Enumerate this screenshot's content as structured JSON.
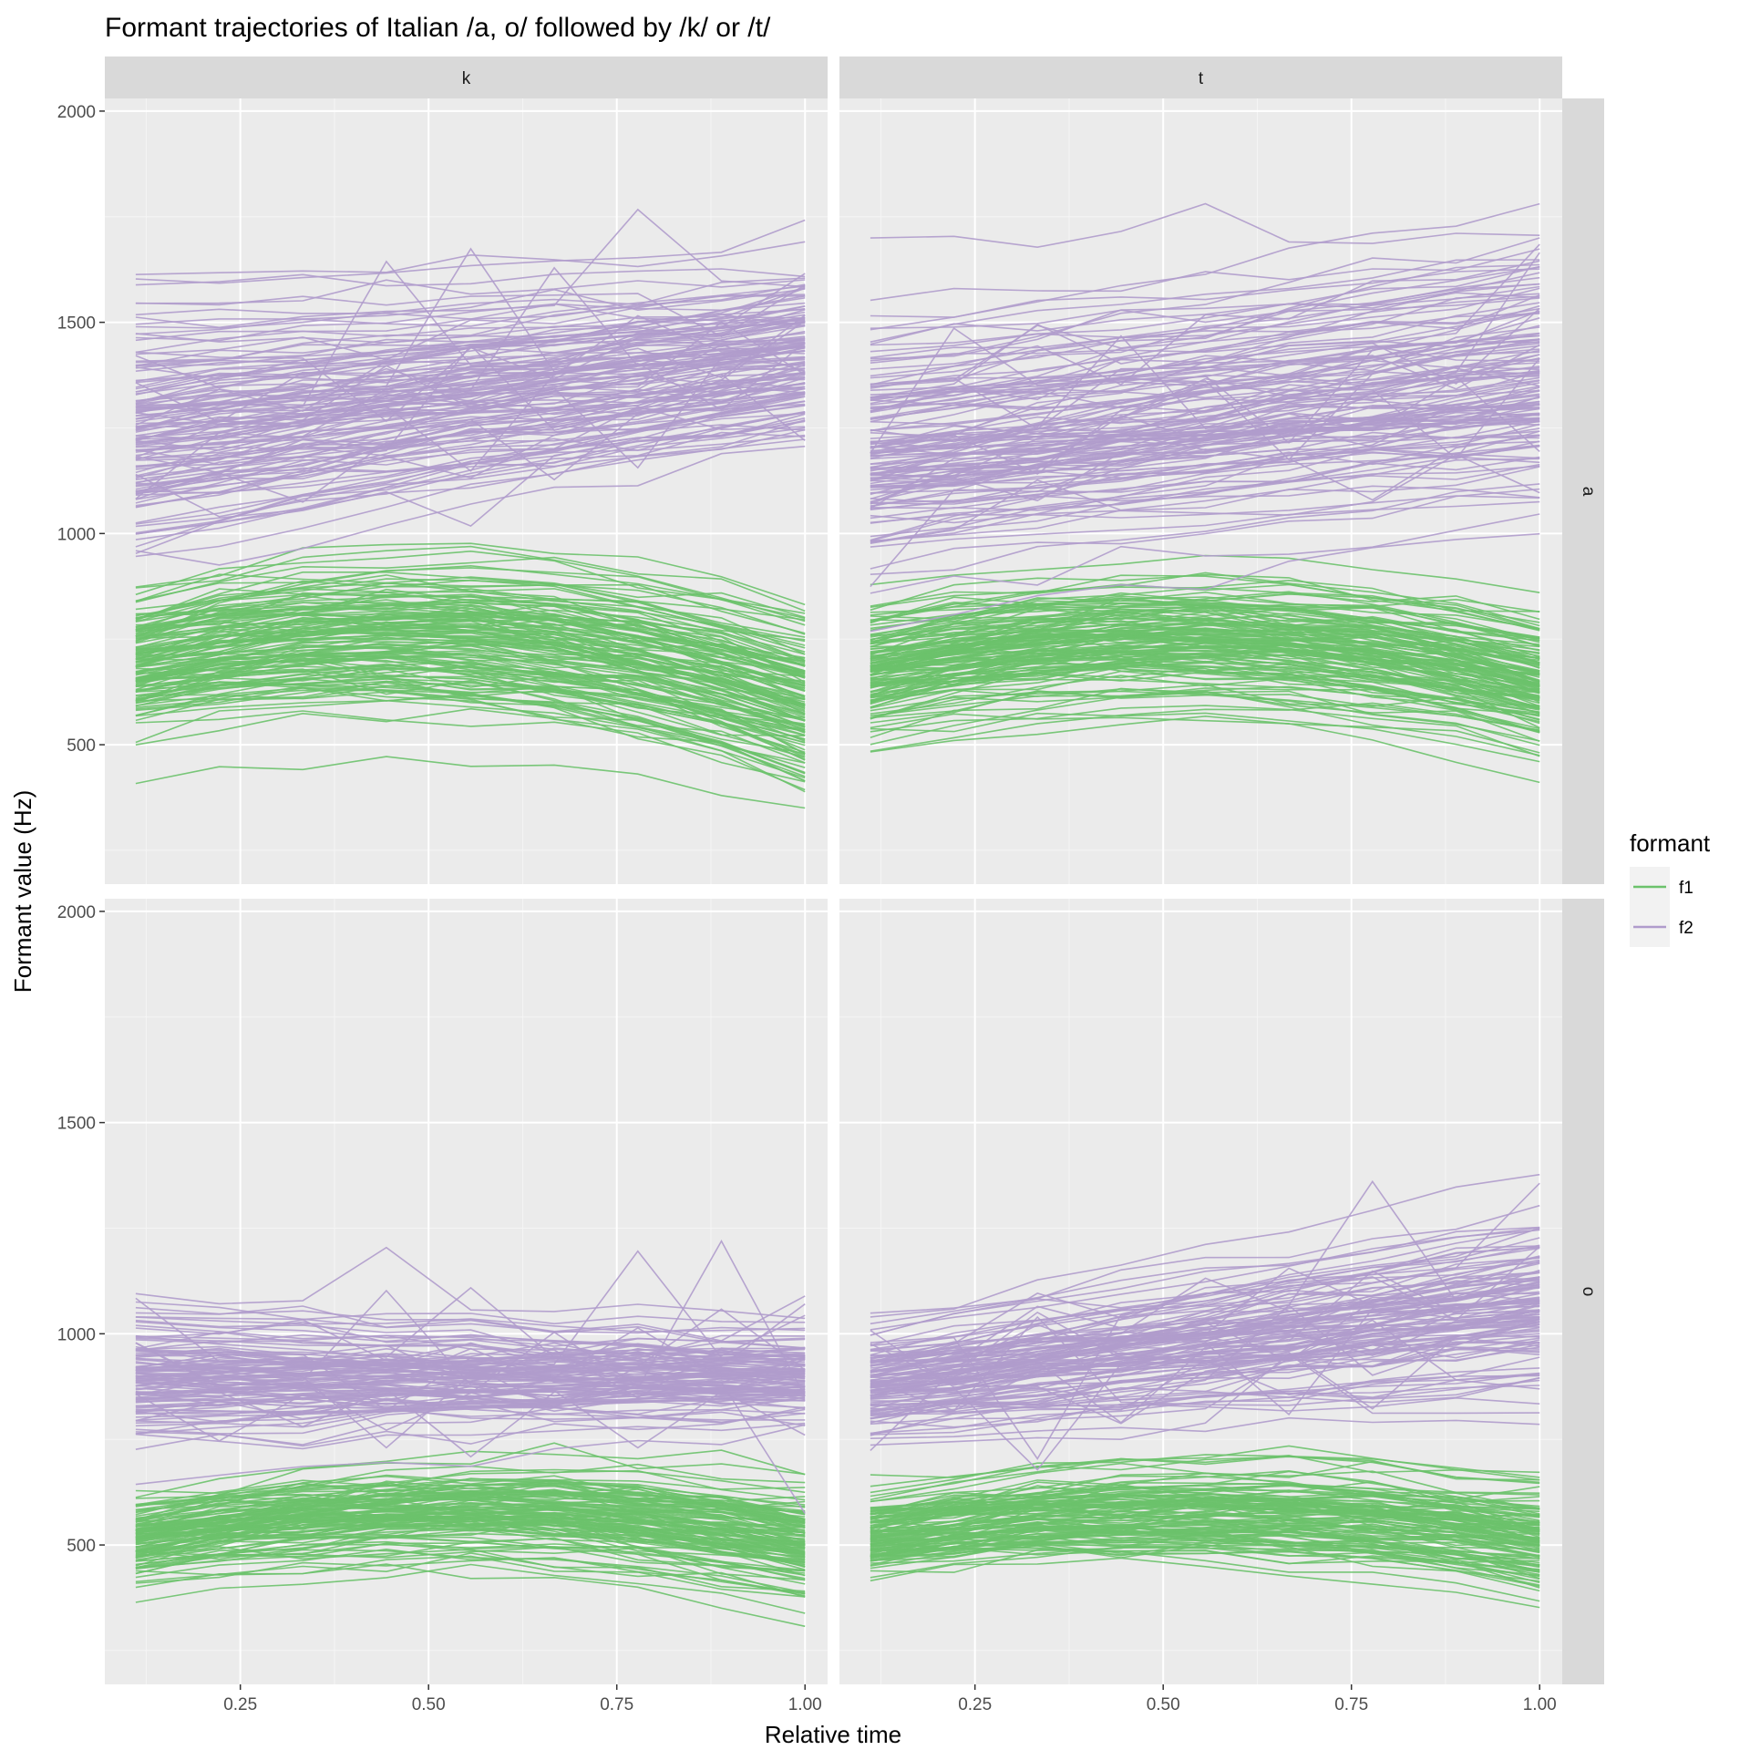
{
  "chart_data": {
    "type": "line",
    "title": "Formant trajectories of Italian /a, o/ followed by /k/ or /t/",
    "xlabel": "Relative time",
    "ylabel": "Formant value (Hz)",
    "xlim": [
      0.07,
      1.03
    ],
    "ylim": [
      170,
      2030
    ],
    "x_ticks": [
      0.25,
      0.5,
      0.75,
      1.0
    ],
    "x_tick_labels": [
      "0.25",
      "0.50",
      "0.75",
      "1.00"
    ],
    "y_ticks": [
      500,
      1000,
      1500,
      2000
    ],
    "y_tick_labels": [
      "500",
      "1000",
      "1500",
      "2000"
    ],
    "x_points": [
      0.111,
      0.222,
      0.333,
      0.444,
      0.556,
      0.667,
      0.778,
      0.889,
      1.0
    ],
    "grid": true,
    "facets": {
      "columns": [
        "k",
        "t"
      ],
      "rows": [
        "a",
        "o"
      ]
    },
    "legend": {
      "title": "formant",
      "placement": "right",
      "entries": [
        {
          "label": "f1",
          "color": "#6cc26c"
        },
        {
          "label": "f2",
          "color": "#b09ccc"
        }
      ]
    },
    "panels": [
      {
        "column": "k",
        "row": "a",
        "series": [
          {
            "formant": "f2",
            "trajectories": 140,
            "start": 1250,
            "end": 1420,
            "start_spread": 140,
            "end_spread": 110
          },
          {
            "formant": "f1",
            "trajectories": 140,
            "start": 690,
            "peak": 760,
            "end": 600,
            "start_spread": 80,
            "end_spread": 110
          }
        ]
      },
      {
        "column": "t",
        "row": "a",
        "series": [
          {
            "formant": "f2",
            "trajectories": 140,
            "start": 1200,
            "end": 1380,
            "start_spread": 150,
            "end_spread": 170
          },
          {
            "formant": "f1",
            "trajectories": 140,
            "start": 680,
            "peak": 760,
            "end": 650,
            "start_spread": 80,
            "end_spread": 90
          }
        ]
      },
      {
        "column": "k",
        "row": "o",
        "series": [
          {
            "formant": "f2",
            "trajectories": 120,
            "start": 890,
            "end": 900,
            "start_spread": 80,
            "end_spread": 55
          },
          {
            "formant": "f1",
            "trajectories": 120,
            "start": 510,
            "peak": 580,
            "end": 500,
            "start_spread": 45,
            "end_spread": 70
          }
        ]
      },
      {
        "column": "t",
        "row": "o",
        "series": [
          {
            "formant": "f2",
            "trajectories": 120,
            "start": 880,
            "end": 1060,
            "start_spread": 70,
            "end_spread": 130
          },
          {
            "formant": "f1",
            "trajectories": 120,
            "start": 520,
            "peak": 580,
            "end": 510,
            "start_spread": 45,
            "end_spread": 65
          }
        ]
      }
    ]
  }
}
